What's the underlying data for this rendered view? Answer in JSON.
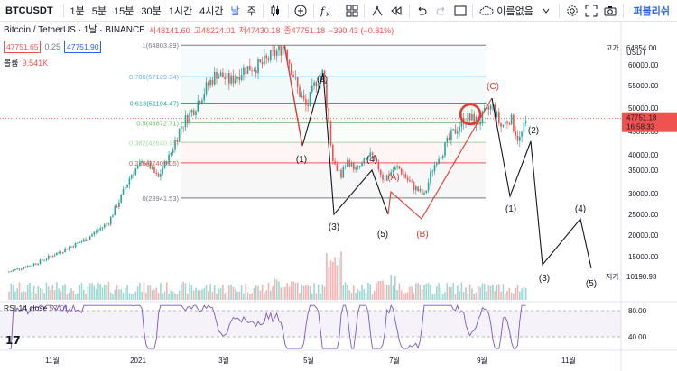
{
  "toolbar": {
    "symbol": "BTCUSDT",
    "intervals": [
      "1분",
      "5분",
      "15분",
      "30분",
      "1시간",
      "4시간",
      "날",
      "주"
    ],
    "active_interval": "날",
    "cloud_label": "이름없음",
    "publish_label": "퍼블리쉬"
  },
  "legend": {
    "title": "Bitcoin / TetherUS · 1날 · BINANCE",
    "open": "시48141.60",
    "high": "고48224.01",
    "low": "저47430.18",
    "close": "종47751.18",
    "change": "−390.43 (−0.81%)",
    "bid": "47751.65",
    "spread": "0.25",
    "ask": "47751.90",
    "volume_label": "볼륨",
    "volume_value": "9.541K",
    "rsi_label": "RSI 14 close",
    "rsi_value": "57.01"
  },
  "price_axis": {
    "currency": "USDT",
    "high_tag": "고가",
    "high_value": "64854.00",
    "low_tag": "저가",
    "low_value": "10190.93",
    "last_price": "47751.18",
    "countdown": "16:58:33",
    "ticks": [
      "60000.00",
      "55000.00",
      "50000.00",
      "45000.00",
      "40000.00",
      "35000.00",
      "30000.00",
      "25000.00",
      "20000.00",
      "15000.00"
    ],
    "rsi_ticks": [
      "80.00",
      "40.00"
    ]
  },
  "time_axis": [
    "11월",
    "2021",
    "3월",
    "5월",
    "7월",
    "9월",
    "11월"
  ],
  "fib_levels": [
    {
      "label": "1(64803.89)",
      "color": "#787b86"
    },
    {
      "label": "0.786(57129.34)",
      "color": "#64b5f6"
    },
    {
      "label": "0.618(51104.47)",
      "color": "#26a69a"
    },
    {
      "label": "0.5(46872.71)",
      "color": "#66bb6a"
    },
    {
      "label": "0.382(42640.95)",
      "color": "#a5d6a7"
    },
    {
      "label": "0.236(37405.05)",
      "color": "#ef5350"
    },
    {
      "label": "0(28941.53)",
      "color": "#787b86"
    }
  ],
  "wave_labels": {
    "first": [
      "(1)",
      "(2)",
      "(3)",
      "(4)",
      "(5)"
    ],
    "corrective": [
      "(A)",
      "(B)",
      "(C)"
    ],
    "projection": [
      "(1)",
      "(2)",
      "(3)",
      "(4)",
      "(5)"
    ]
  },
  "colors": {
    "up": "#26a69a",
    "down": "#ef5350",
    "rsi_line": "#7e57c2",
    "accent": "#2962ff"
  }
}
